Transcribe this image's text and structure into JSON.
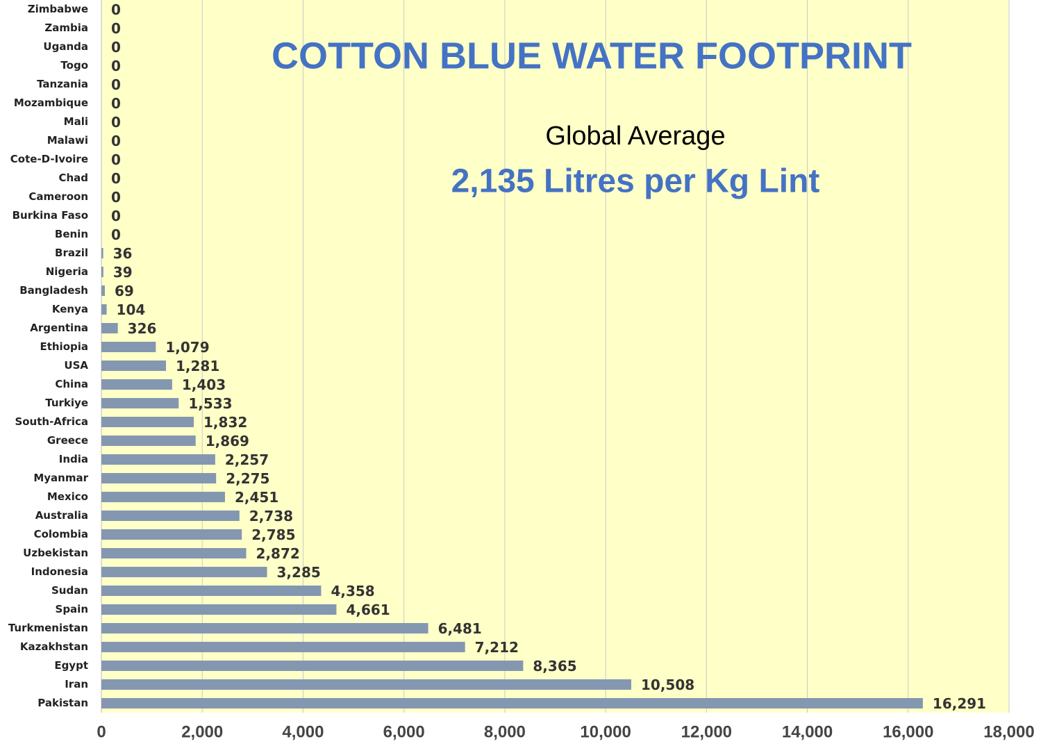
{
  "chart_data": {
    "type": "barh",
    "title": "COTTON BLUE WATER FOOTPRINT",
    "annotations": [
      "Global Average",
      "2,135 Litres per Kg Lint"
    ],
    "categories": [
      "Zimbabwe",
      "Zambia",
      "Uganda",
      "Togo",
      "Tanzania",
      "Mozambique",
      "Mali",
      "Malawi",
      "Cote-D-Ivoire",
      "Chad",
      "Cameroon",
      "Burkina Faso",
      "Benin",
      "Brazil",
      "Nigeria",
      "Bangladesh",
      "Kenya",
      "Argentina",
      "Ethiopia",
      "USA",
      "China",
      "Turkiye",
      "South-Africa",
      "Greece",
      "India",
      "Myanmar",
      "Mexico",
      "Australia",
      "Colombia",
      "Uzbekistan",
      "Indonesia",
      "Sudan",
      "Spain",
      "Turkmenistan",
      "Kazakhstan",
      "Egypt",
      "Iran",
      "Pakistan"
    ],
    "values": [
      0,
      0,
      0,
      0,
      0,
      0,
      0,
      0,
      0,
      0,
      0,
      0,
      0,
      36,
      39,
      69,
      104,
      326,
      1079,
      1281,
      1403,
      1533,
      1832,
      1869,
      2257,
      2275,
      2451,
      2738,
      2785,
      2872,
      3285,
      4358,
      4661,
      6481,
      7212,
      8365,
      10508,
      16291
    ],
    "value_labels": [
      "0",
      "0",
      "0",
      "0",
      "0",
      "0",
      "0",
      "0",
      "0",
      "0",
      "0",
      "0",
      "0",
      "36",
      "39",
      "69",
      "104",
      "326",
      "1,079",
      "1,281",
      "1,403",
      "1,533",
      "1,832",
      "1,869",
      "2,257",
      "2,275",
      "2,451",
      "2,738",
      "2,785",
      "2,872",
      "3,285",
      "4,358",
      "4,661",
      "6,481",
      "7,212",
      "8,365",
      "10,508",
      "16,291"
    ],
    "color": "#8497b0",
    "xlim": [
      0,
      18000
    ],
    "xticks": [
      0,
      {
        "value": 2000,
        "label": "2,000"
      },
      {
        "value": 4000,
        "label": "4,000"
      },
      {
        "value": 6000,
        "label": "6,000"
      },
      {
        "value": 8000,
        "label": "8,000"
      },
      {
        "value": 10000,
        "label": "10,000"
      },
      {
        "value": 12000,
        "label": "12,000"
      },
      {
        "value": 14000,
        "label": "14,000"
      },
      {
        "value": 16000,
        "label": "16,000"
      },
      {
        "value": 18000,
        "label": "18,000"
      }
    ],
    "grid": true
  }
}
